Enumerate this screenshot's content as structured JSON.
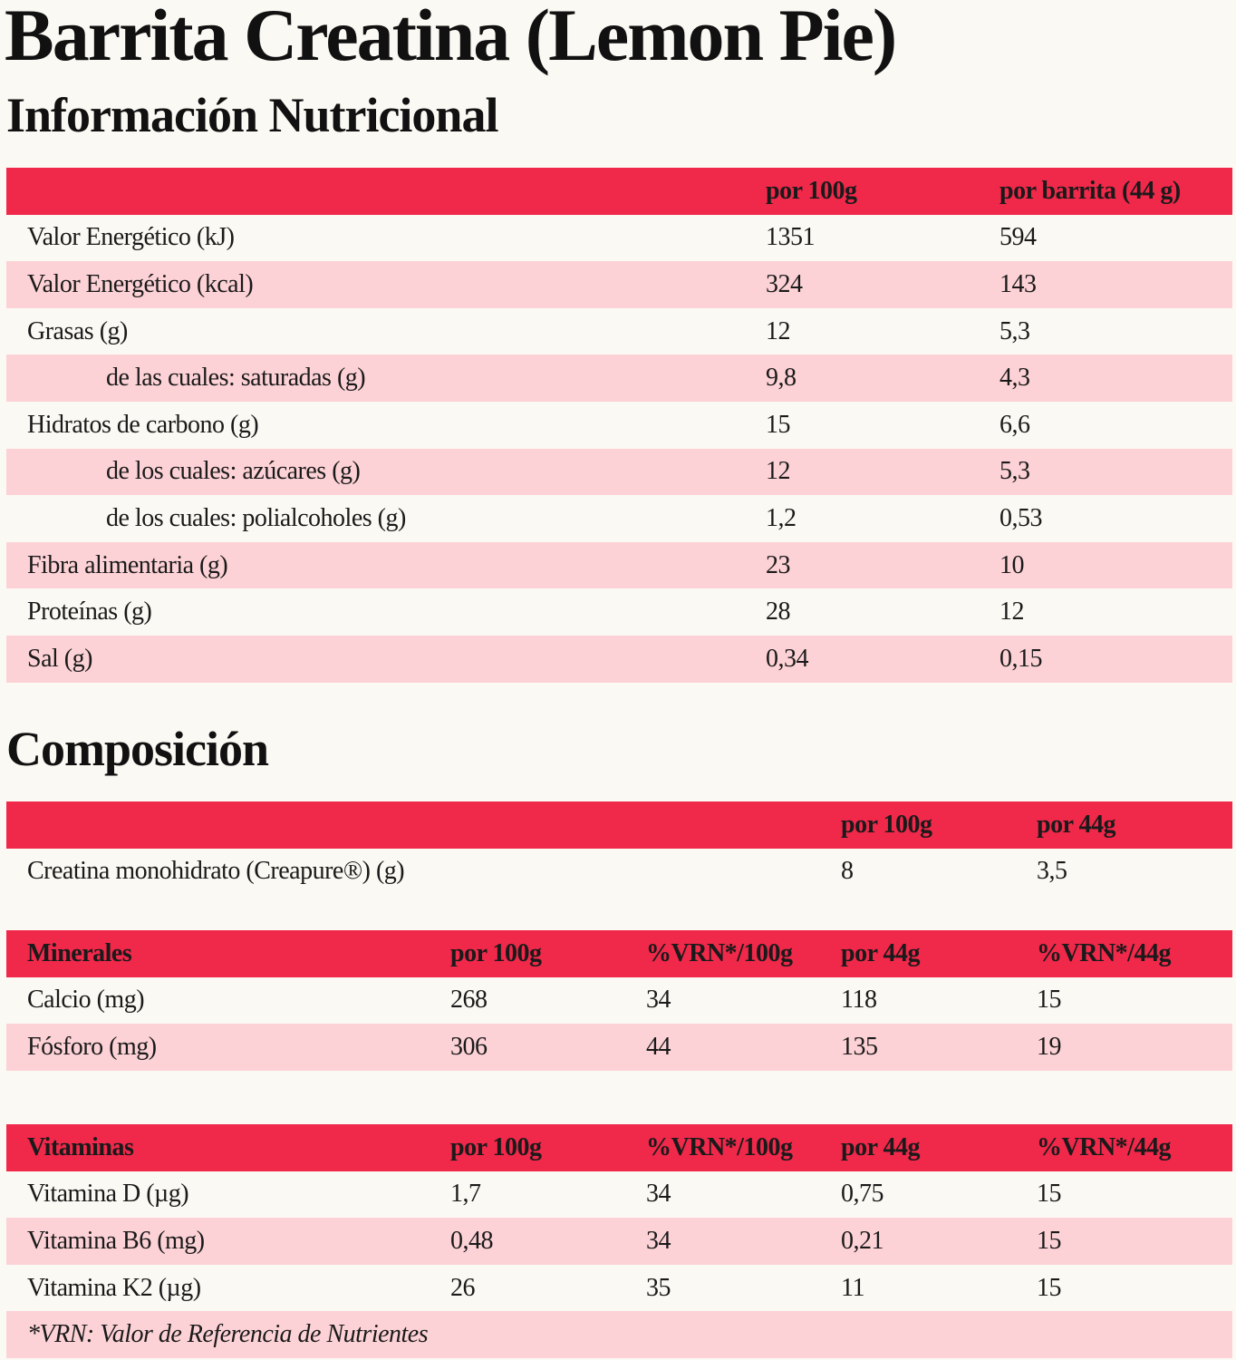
{
  "title": "Barrita Creatina (Lemon Pie)",
  "nutrition": {
    "heading": "Información Nutricional",
    "header": [
      "por 100g",
      "por barrita (44 g)"
    ],
    "rows": [
      {
        "label": "Valor Energético (kJ)",
        "values": [
          "1351",
          "594"
        ]
      },
      {
        "label": "Valor Energético (kcal)",
        "values": [
          "324",
          "143"
        ]
      },
      {
        "label": "Grasas (g)",
        "values": [
          "12",
          "5,3"
        ]
      },
      {
        "label": "de las cuales: saturadas (g)",
        "values": [
          "9,8",
          "4,3"
        ],
        "indent": true
      },
      {
        "label": "Hidratos de carbono (g)",
        "values": [
          "15",
          "6,6"
        ]
      },
      {
        "label": "de los cuales: azúcares (g)",
        "values": [
          "12",
          "5,3"
        ],
        "indent": true
      },
      {
        "label": "de los cuales: polialcoholes (g)",
        "values": [
          "1,2",
          "0,53"
        ],
        "indent": true
      },
      {
        "label": "Fibra alimentaria (g)",
        "values": [
          "23",
          "10"
        ]
      },
      {
        "label": "Proteínas (g)",
        "values": [
          "28",
          "12"
        ]
      },
      {
        "label": "Sal (g)",
        "values": [
          "0,34",
          "0,15"
        ]
      }
    ]
  },
  "composition": {
    "heading": "Composición",
    "header": [
      "por 100g",
      "por 44g"
    ],
    "rows": [
      {
        "label": "Creatina monohidrato (Creapure®) (g)",
        "values": [
          "8",
          "3,5"
        ]
      }
    ]
  },
  "minerals": {
    "header": [
      "Minerales",
      "por 100g",
      "%VRN*/100g",
      "por 44g",
      "%VRN*/44g"
    ],
    "rows": [
      {
        "label": "Calcio (mg)",
        "values": [
          "268",
          "34",
          "118",
          "15"
        ]
      },
      {
        "label": "Fósforo (mg)",
        "values": [
          "306",
          "44",
          "135",
          "19"
        ]
      }
    ]
  },
  "vitamins": {
    "header": [
      "Vitaminas",
      "por 100g",
      "%VRN*/100g",
      "por 44g",
      "%VRN*/44g"
    ],
    "rows": [
      {
        "label": "Vitamina D (µg)",
        "values": [
          "1,7",
          "34",
          "0,75",
          "15"
        ]
      },
      {
        "label": "Vitamina B6 (mg)",
        "values": [
          "0,48",
          "34",
          "0,21",
          "15"
        ]
      },
      {
        "label": "Vitamina K2 (µg)",
        "values": [
          "26",
          "35",
          "11",
          "15"
        ]
      }
    ],
    "footnote": "*VRN: Valor de Referencia de Nutrientes"
  }
}
